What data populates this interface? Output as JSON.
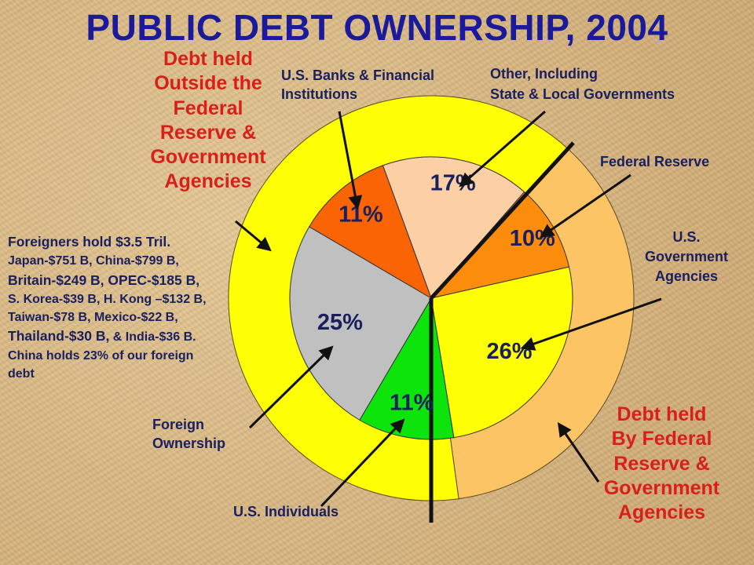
{
  "title": "PUBLIC DEBT OWNERSHIP, 2004",
  "labels": {
    "outside_lines": [
      "Debt held",
      "Outside the",
      "Federal",
      "Reserve &",
      "Government",
      "Agencies"
    ],
    "fed_lines": [
      "Debt held",
      "By Federal",
      "Reserve &",
      "Government",
      "Agencies"
    ],
    "banks_lines": [
      "U.S. Banks & Financial",
      "Institutions"
    ],
    "other_lines": [
      "Other, Including",
      "State & Local Governments"
    ],
    "federal_reserve": "Federal Reserve",
    "usgov_lines": [
      "U.S.",
      "Government",
      "Agencies"
    ],
    "foreign_ownership_lines": [
      "Foreign",
      "Ownership"
    ],
    "individuals": "U.S. Individuals"
  },
  "foreigners_note": {
    "line1": "Foreigners hold $3.5 Tril.",
    "line2": "Japan-$751 B, China-$799 B,",
    "line3": "Britain-$249 B, OPEC-$185 B,",
    "line4": "S. Korea-$39 B, H. Kong –$132 B,",
    "line5": "Taiwan-$78 B, Mexico-$22 B,",
    "line6a": "Thailand-$30 B,",
    "line6b": " & India-$36 B.",
    "line7": "China holds 23% of our foreign",
    "line8": "debt"
  },
  "chart_data": {
    "type": "pie",
    "title": "PUBLIC DEBT OWNERSHIP, 2004",
    "inner": {
      "slices": [
        {
          "label": "17%",
          "category": "Other, Including State & Local Governments",
          "value": 17,
          "color": "#fccfa4"
        },
        {
          "label": "10%",
          "category": "Federal Reserve",
          "value": 10,
          "color": "#fb8c0c"
        },
        {
          "label": "26%",
          "category": "U.S. Government Agencies",
          "value": 26,
          "color": "#fefe04"
        },
        {
          "label": "11%",
          "category": "U.S. Individuals",
          "value": 11,
          "color": "#0ce40c"
        },
        {
          "label": "25%",
          "category": "Foreign Ownership",
          "value": 25,
          "color": "#c0c0c0"
        },
        {
          "label": "11%",
          "category": "U.S. Banks & Financial Institutions",
          "value": 11,
          "color": "#fb6404"
        }
      ]
    },
    "outer": {
      "slices": [
        {
          "category": "Debt held By Federal Reserve & Government Agencies",
          "value": 36,
          "color": "#fcc464"
        },
        {
          "category": "Debt held Outside the Federal Reserve & Government Agencies",
          "value": 64,
          "color": "#fefe04"
        }
      ]
    }
  }
}
